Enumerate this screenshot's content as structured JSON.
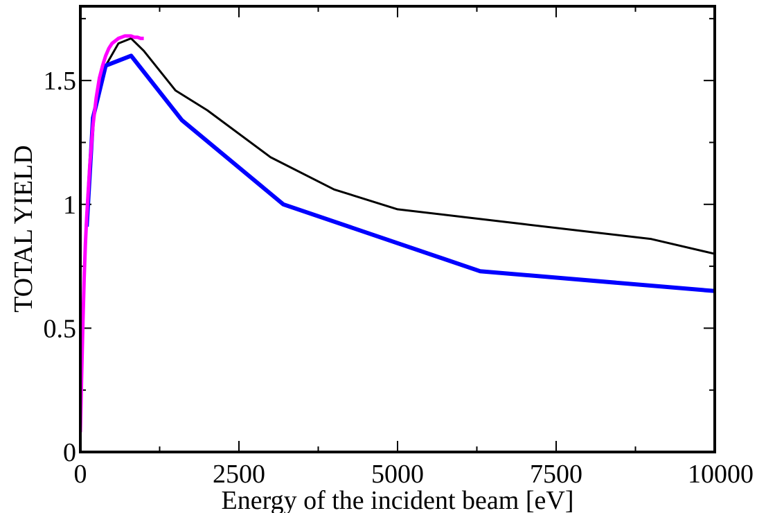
{
  "chart_data": {
    "type": "line",
    "title": "",
    "xlabel": "Energy of the incident beam [eV]",
    "ylabel": "TOTAL YIELD",
    "xlim": [
      0,
      10000
    ],
    "ylim": [
      0,
      1.8
    ],
    "grid": false,
    "legend": "none",
    "x_ticks": [
      {
        "value": 0,
        "label": "0"
      },
      {
        "value": 2500,
        "label": "2500"
      },
      {
        "value": 5000,
        "label": "5000"
      },
      {
        "value": 7500,
        "label": "7500"
      },
      {
        "value": 10000,
        "label": "10000"
      }
    ],
    "y_ticks": [
      {
        "value": 0,
        "label": "0"
      },
      {
        "value": 0.5,
        "label": "0.5"
      },
      {
        "value": 1,
        "label": "1"
      },
      {
        "value": 1.5,
        "label": "1.5"
      }
    ],
    "series": [
      {
        "color": "#000000",
        "width": 3,
        "x": [
          400,
          600,
          800,
          1000,
          1500,
          2000,
          3000,
          4000,
          5000,
          6000,
          7000,
          8000,
          9000,
          10000
        ],
        "y": [
          1.56,
          1.65,
          1.67,
          1.62,
          1.46,
          1.38,
          1.19,
          1.06,
          0.98,
          0.95,
          0.92,
          0.89,
          0.86,
          0.8
        ]
      },
      {
        "color": "#0000ff",
        "width": 6,
        "x": [
          100,
          200,
          400,
          800,
          1600,
          3200,
          6300,
          10000
        ],
        "y": [
          0.91,
          1.35,
          1.56,
          1.6,
          1.34,
          1.0,
          0.73,
          0.65
        ]
      },
      {
        "color": "#ff00ff",
        "width": 5,
        "x": [
          0,
          20,
          40,
          60,
          80,
          100,
          150,
          200,
          250,
          300,
          350,
          400,
          450,
          500,
          550,
          600,
          650,
          700,
          750,
          800,
          850,
          900,
          950,
          1000
        ],
        "y": [
          0.08,
          0.3,
          0.52,
          0.7,
          0.84,
          0.95,
          1.16,
          1.32,
          1.43,
          1.51,
          1.56,
          1.6,
          1.63,
          1.65,
          1.66,
          1.67,
          1.675,
          1.68,
          1.68,
          1.68,
          1.675,
          1.675,
          1.67,
          1.67
        ]
      }
    ]
  }
}
